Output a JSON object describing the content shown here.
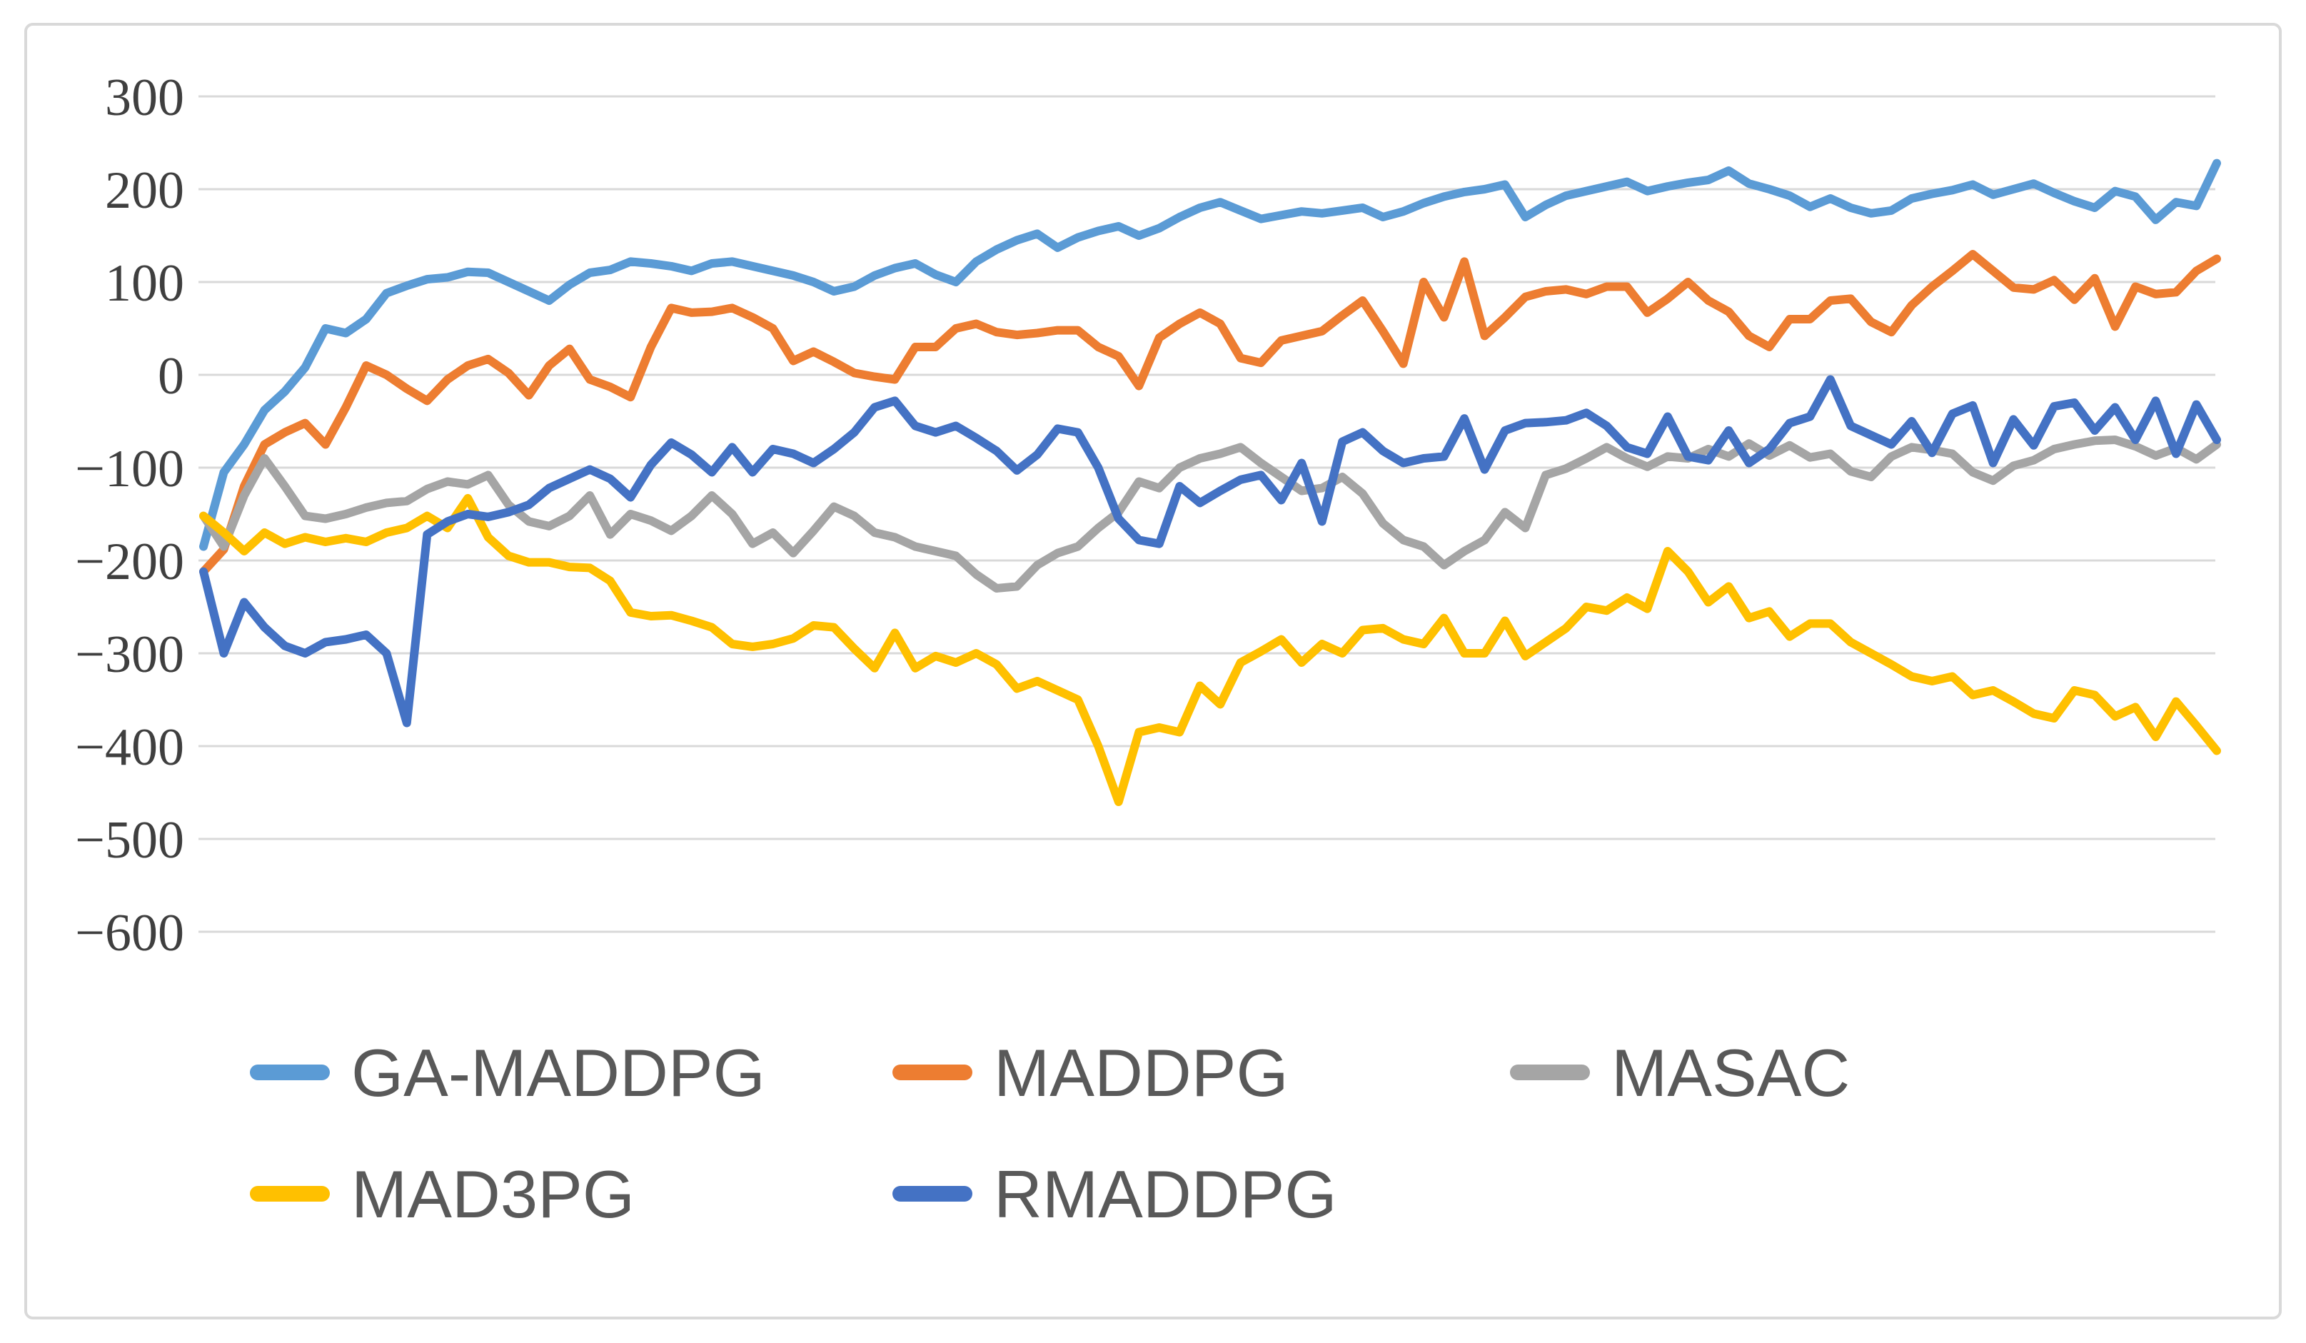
{
  "chart_data": {
    "type": "line",
    "title": "",
    "xlabel": "",
    "ylabel": "",
    "xticks": [],
    "yticks": [
      300,
      200,
      100,
      0,
      -100,
      -200,
      -300,
      -400,
      -500,
      -600
    ],
    "ytick_labels": [
      "300",
      "200",
      "100",
      "0",
      "−100",
      "−200",
      "−300",
      "−400",
      "−500",
      "−600"
    ],
    "ylim": [
      -650,
      330
    ],
    "grid": true,
    "gridline_color": "#d9d9d9",
    "frame_border_color": "#d9d9d9",
    "legend_position": "bottom-left, two rows",
    "series": [
      {
        "name": "GA-MADDPG",
        "color": "#5B9BD5",
        "values": [
          -185,
          -105,
          -75,
          -38,
          -18,
          8,
          50,
          45,
          60,
          88,
          96,
          103,
          105,
          111,
          110,
          100,
          90,
          80,
          97,
          110,
          113,
          122,
          120,
          117,
          112,
          120,
          122,
          117,
          112,
          107,
          100,
          90,
          95,
          107,
          115,
          120,
          108,
          100,
          122,
          135,
          145,
          152,
          137,
          148,
          155,
          160,
          150,
          158,
          170,
          180,
          186,
          177,
          168,
          172,
          176,
          174,
          177,
          180,
          170,
          176,
          185,
          192,
          197,
          200,
          205,
          170,
          183,
          193,
          198,
          203,
          208,
          198,
          203,
          207,
          210,
          220,
          206,
          200,
          193,
          181,
          190,
          180,
          174,
          177,
          190,
          195,
          199,
          205,
          194,
          200,
          206,
          196,
          187,
          180,
          198,
          192,
          167,
          186,
          182,
          228
        ]
      },
      {
        "name": "MADDPG",
        "color": "#ED7D31",
        "values": [
          -212,
          -188,
          -120,
          -75,
          -62,
          -52,
          -75,
          -35,
          10,
          0,
          -15,
          -28,
          -5,
          10,
          17,
          2,
          -22,
          10,
          28,
          -5,
          -13,
          -24,
          30,
          72,
          67,
          68,
          72,
          62,
          50,
          15,
          25,
          14,
          2,
          -2,
          -5,
          30,
          30,
          50,
          55,
          46,
          43,
          45,
          48,
          48,
          30,
          20,
          -12,
          40,
          55,
          67,
          55,
          18,
          13,
          37,
          42,
          47,
          64,
          80,
          47,
          12,
          100,
          62,
          122,
          42,
          62,
          84,
          90,
          92,
          87,
          95,
          95,
          67,
          82,
          100,
          80,
          68,
          42,
          30,
          60,
          60,
          80,
          82,
          57,
          46,
          75,
          95,
          112,
          130,
          112,
          94,
          92,
          102,
          81,
          104,
          52,
          95,
          87,
          89,
          112,
          125
        ]
      },
      {
        "name": "MASAC",
        "color": "#A5A5A5",
        "values": [
          -152,
          -185,
          -130,
          -90,
          -120,
          -152,
          -155,
          -150,
          -143,
          -138,
          -136,
          -123,
          -115,
          -118,
          -108,
          -140,
          -158,
          -163,
          -152,
          -130,
          -172,
          -150,
          -157,
          -168,
          -152,
          -130,
          -150,
          -182,
          -170,
          -192,
          -168,
          -142,
          -152,
          -170,
          -175,
          -185,
          -190,
          -195,
          -215,
          -230,
          -228,
          -205,
          -192,
          -185,
          -165,
          -148,
          -115,
          -122,
          -100,
          -90,
          -85,
          -78,
          -95,
          -110,
          -125,
          -122,
          -110,
          -128,
          -160,
          -178,
          -185,
          -205,
          -190,
          -178,
          -148,
          -165,
          -108,
          -101,
          -90,
          -78,
          -90,
          -99,
          -88,
          -90,
          -80,
          -88,
          -74,
          -87,
          -76,
          -89,
          -85,
          -104,
          -110,
          -88,
          -78,
          -81,
          -85,
          -105,
          -114,
          -98,
          -92,
          -80,
          -75,
          -71,
          -70,
          -77,
          -87,
          -79,
          -91,
          -75
        ]
      },
      {
        "name": "MAD3PG",
        "color": "#FFC000",
        "values": [
          -152,
          -170,
          -190,
          -170,
          -182,
          -175,
          -180,
          -176,
          -180,
          -170,
          -165,
          -152,
          -165,
          -133,
          -175,
          -195,
          -202,
          -202,
          -207,
          -208,
          -222,
          -256,
          -260,
          -259,
          -265,
          -272,
          -290,
          -293,
          -290,
          -284,
          -270,
          -272,
          -295,
          -316,
          -278,
          -316,
          -303,
          -310,
          -300,
          -312,
          -338,
          -330,
          -340,
          -350,
          -400,
          -460,
          -385,
          -380,
          -385,
          -335,
          -355,
          -310,
          -298,
          -285,
          -310,
          -290,
          -300,
          -275,
          -273,
          -285,
          -290,
          -262,
          -300,
          -300,
          -265,
          -303,
          -288,
          -273,
          -250,
          -254,
          -240,
          -252,
          -190,
          -212,
          -245,
          -228,
          -262,
          -255,
          -282,
          -268,
          -268,
          -288,
          -300,
          -312,
          -325,
          -330,
          -325,
          -345,
          -340,
          -352,
          -365,
          -370,
          -340,
          -345,
          -368,
          -358,
          -390,
          -352,
          -378,
          -405
        ]
      },
      {
        "name": "RMADDPG",
        "color": "#4472C4",
        "values": [
          -212,
          -300,
          -245,
          -272,
          -292,
          -300,
          -288,
          -285,
          -280,
          -300,
          -375,
          -172,
          -158,
          -150,
          -153,
          -148,
          -140,
          -122,
          -112,
          -102,
          -112,
          -132,
          -97,
          -73,
          -86,
          -105,
          -78,
          -105,
          -80,
          -85,
          -95,
          -80,
          -62,
          -35,
          -28,
          -55,
          -62,
          -55,
          -68,
          -82,
          -103,
          -86,
          -58,
          -62,
          -100,
          -155,
          -178,
          -182,
          -120,
          -138,
          -125,
          -113,
          -108,
          -135,
          -95,
          -158,
          -72,
          -62,
          -82,
          -95,
          -90,
          -88,
          -47,
          -102,
          -60,
          -52,
          -51,
          -49,
          -41,
          -55,
          -78,
          -85,
          -45,
          -88,
          -92,
          -60,
          -95,
          -80,
          -52,
          -45,
          -5,
          -55,
          -65,
          -75,
          -50,
          -84,
          -42,
          -33,
          -95,
          -48,
          -76,
          -34,
          -30,
          -60,
          -35,
          -70,
          -28,
          -85,
          -32,
          -70
        ]
      }
    ]
  },
  "legend": {
    "rows": [
      {
        "items": [
          0,
          1,
          2
        ]
      },
      {
        "items": [
          3,
          4
        ]
      }
    ]
  }
}
